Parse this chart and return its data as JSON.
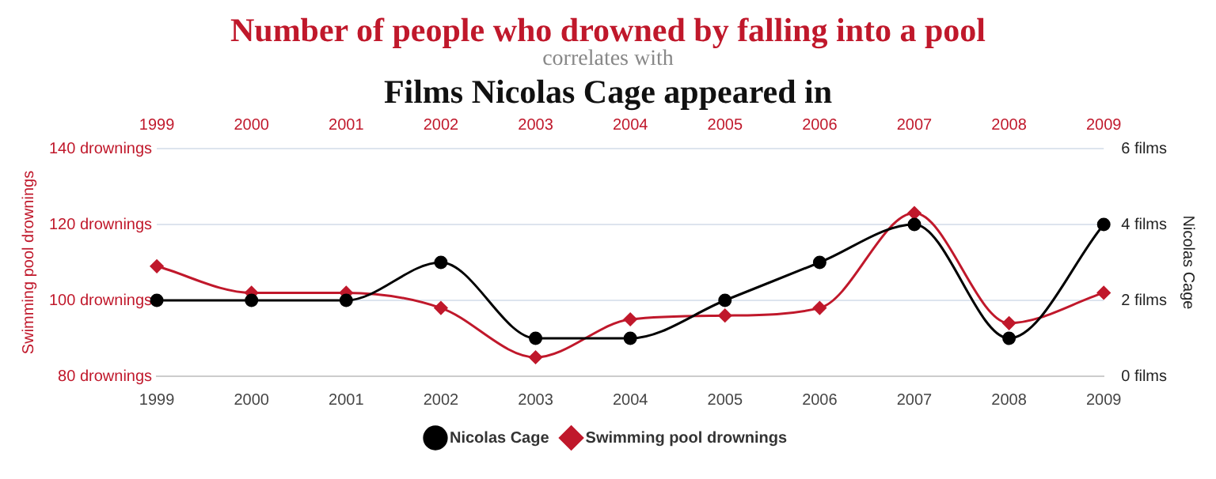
{
  "chart_data": {
    "type": "line",
    "title": "Number of people who drowned by falling into a pool",
    "subtitle": "correlates with",
    "annotations": [
      "Films Nicolas Cage appeared in"
    ],
    "categories": [
      "1999",
      "2000",
      "2001",
      "2002",
      "2003",
      "2004",
      "2005",
      "2006",
      "2007",
      "2008",
      "2009"
    ],
    "series": [
      {
        "name": "Nicolas Cage",
        "color": "#000000",
        "axis": "y2",
        "marker": "circle",
        "values": [
          2,
          2,
          2,
          3,
          1,
          1,
          2,
          3,
          4,
          1,
          4
        ]
      },
      {
        "name": "Swimming pool drownings",
        "color": "#c0182b",
        "axis": "y",
        "marker": "diamond",
        "values": [
          109,
          102,
          102,
          98,
          85,
          95,
          96,
          98,
          123,
          94,
          102
        ]
      }
    ],
    "ylabel": "Swimming pool drownings",
    "y2label": "Nicolas Cage",
    "ylim": [
      80,
      140
    ],
    "yticks": [
      {
        "value": 80,
        "label": "80 drownings"
      },
      {
        "value": 100,
        "label": "100 drownings"
      },
      {
        "value": 120,
        "label": "120 drownings"
      },
      {
        "value": 140,
        "label": "140 drownings"
      }
    ],
    "y2lim": [
      0,
      6
    ],
    "y2ticks": [
      {
        "value": 0,
        "label": "0 films"
      },
      {
        "value": 2,
        "label": "2 films"
      },
      {
        "value": 4,
        "label": "4 films"
      },
      {
        "value": 6,
        "label": "6 films"
      }
    ],
    "grid": "y",
    "legend": "bottom",
    "line_style": "solid"
  }
}
